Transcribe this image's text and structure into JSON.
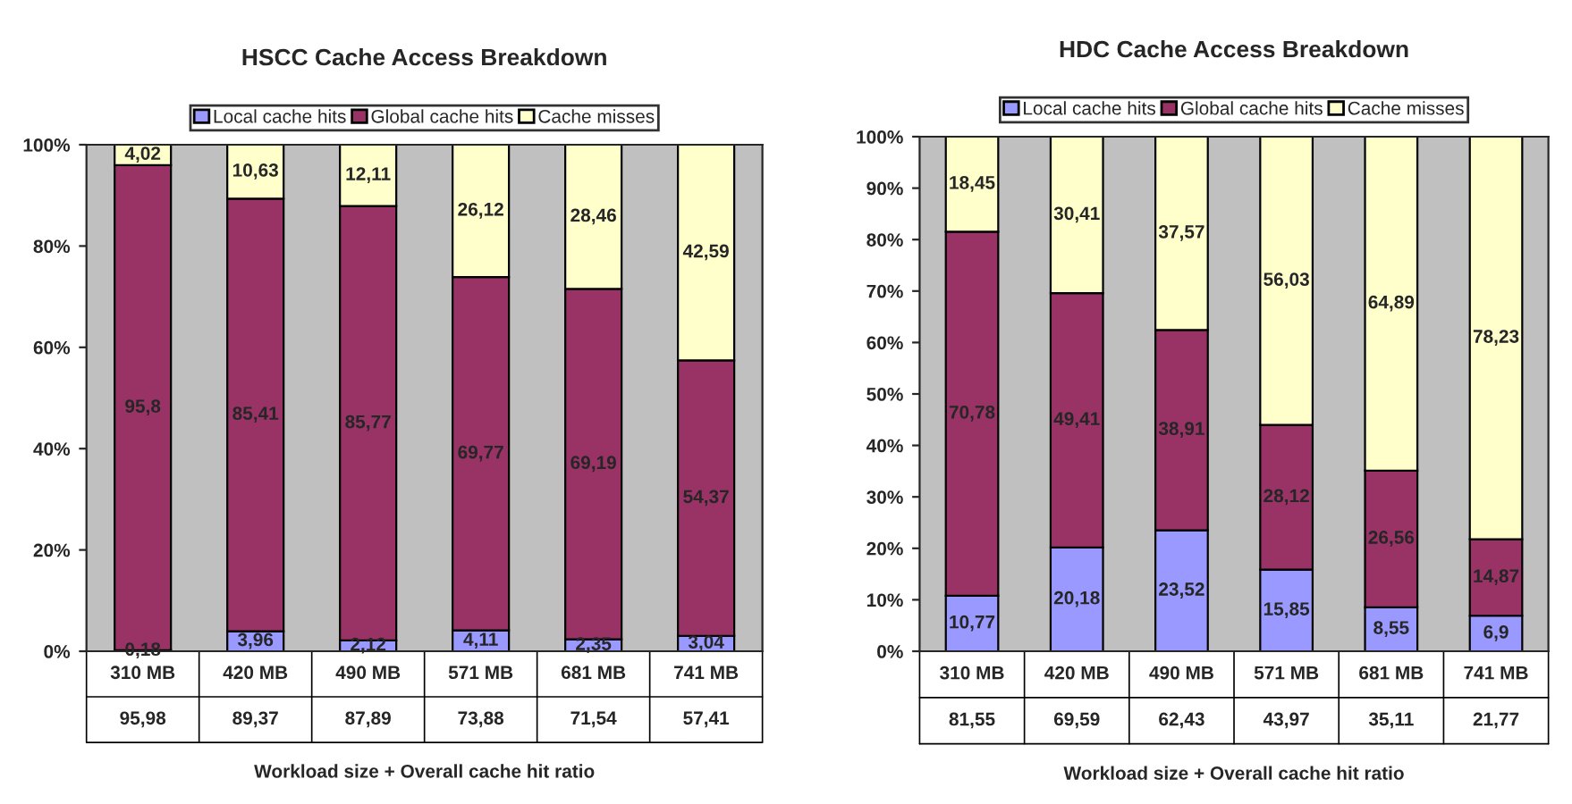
{
  "chart_data": [
    {
      "type": "bar",
      "stacked": true,
      "title": "HSCC Cache Access Breakdown",
      "xlabel": "Workload size + Overall cache hit ratio",
      "legend": "top",
      "grid": false,
      "categories": [
        "310 MB",
        "420 MB",
        "490 MB",
        "571 MB",
        "681 MB",
        "741 MB"
      ],
      "series": [
        {
          "name": "Local cache hits",
          "color": "#9999ff",
          "values": [
            0.18,
            3.96,
            2.12,
            4.11,
            2.35,
            3.04
          ],
          "value_labels": [
            "0,18",
            "3,96",
            "2,12",
            "4,11",
            "2,35",
            "3,04"
          ]
        },
        {
          "name": "Global cache hits",
          "color": "#993366",
          "values": [
            95.8,
            85.41,
            85.77,
            69.77,
            69.19,
            54.37
          ],
          "value_labels": [
            "95,8",
            "85,41",
            "85,77",
            "69,77",
            "69,19",
            "54,37"
          ]
        },
        {
          "name": "Cache misses",
          "color": "#ffffcc",
          "values": [
            4.02,
            10.63,
            12.11,
            26.12,
            28.46,
            42.59
          ],
          "value_labels": [
            "4,02",
            "10,63",
            "12,11",
            "26,12",
            "28,46",
            "42,59"
          ]
        }
      ],
      "annotations": [
        "95,98",
        "89,37",
        "87,89",
        "73,88",
        "71,54",
        "57,41"
      ],
      "ylim": [
        0,
        100
      ],
      "yticks": [
        {
          "value": 0,
          "label": "0%"
        },
        {
          "value": 20,
          "label": "20%"
        },
        {
          "value": 40,
          "label": "40%"
        },
        {
          "value": 60,
          "label": "60%"
        },
        {
          "value": 80,
          "label": "80%"
        },
        {
          "value": 100,
          "label": "100%"
        }
      ]
    },
    {
      "type": "bar",
      "stacked": true,
      "title": "HDC Cache Access Breakdown",
      "xlabel": "Workload size + Overall cache hit ratio",
      "legend": "top",
      "grid": false,
      "categories": [
        "310 MB",
        "420 MB",
        "490 MB",
        "571 MB",
        "681 MB",
        "741 MB"
      ],
      "series": [
        {
          "name": "Local cache hits",
          "color": "#9999ff",
          "values": [
            10.77,
            20.18,
            23.52,
            15.85,
            8.55,
            6.9
          ],
          "value_labels": [
            "10,77",
            "20,18",
            "23,52",
            "15,85",
            "8,55",
            "6,9"
          ]
        },
        {
          "name": "Global cache hits",
          "color": "#993366",
          "values": [
            70.78,
            49.41,
            38.91,
            28.12,
            26.56,
            14.87
          ],
          "value_labels": [
            "70,78",
            "49,41",
            "38,91",
            "28,12",
            "26,56",
            "14,87"
          ]
        },
        {
          "name": "Cache misses",
          "color": "#ffffcc",
          "values": [
            18.45,
            30.41,
            37.57,
            56.03,
            64.89,
            78.23
          ],
          "value_labels": [
            "18,45",
            "30,41",
            "37,57",
            "56,03",
            "64,89",
            "78,23"
          ]
        }
      ],
      "annotations": [
        "81,55",
        "69,59",
        "62,43",
        "43,97",
        "35,11",
        "21,77"
      ],
      "ylim": [
        0,
        100
      ],
      "yticks": [
        {
          "value": 0,
          "label": "0%"
        },
        {
          "value": 10,
          "label": "10%"
        },
        {
          "value": 20,
          "label": "20%"
        },
        {
          "value": 30,
          "label": "30%"
        },
        {
          "value": 40,
          "label": "40%"
        },
        {
          "value": 50,
          "label": "50%"
        },
        {
          "value": 60,
          "label": "60%"
        },
        {
          "value": 70,
          "label": "70%"
        },
        {
          "value": 80,
          "label": "80%"
        },
        {
          "value": 90,
          "label": "90%"
        },
        {
          "value": 100,
          "label": "100%"
        }
      ]
    }
  ]
}
